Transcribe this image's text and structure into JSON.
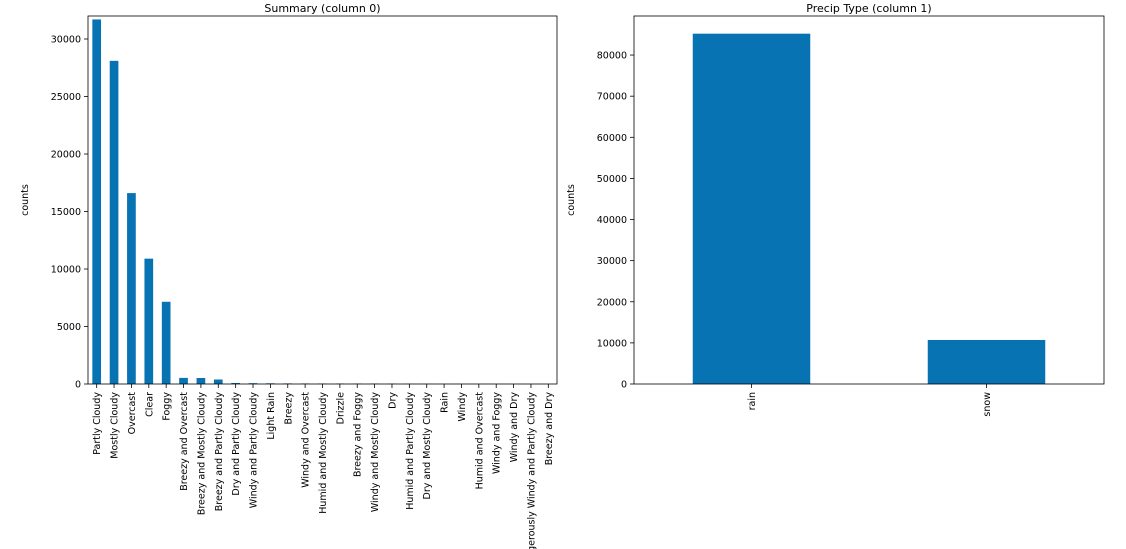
{
  "chart_data": [
    {
      "type": "bar",
      "title": "Summary (column 0)",
      "xlabel": "",
      "ylabel": "counts",
      "ylim": [
        0,
        32000
      ],
      "yticks": [
        0,
        5000,
        10000,
        15000,
        20000,
        25000,
        30000
      ],
      "color": "#0773b2",
      "grid": false,
      "categories": [
        "Partly Cloudy",
        "Mostly Cloudy",
        "Overcast",
        "Clear",
        "Foggy",
        "Breezy and Overcast",
        "Breezy and Mostly Cloudy",
        "Breezy and Partly Cloudy",
        "Dry and Partly Cloudy",
        "Windy and Partly Cloudy",
        "Light Rain",
        "Breezy",
        "Windy and Overcast",
        "Humid and Mostly Cloudy",
        "Drizzle",
        "Breezy and Foggy",
        "Windy and Mostly Cloudy",
        "Dry",
        "Humid and Partly Cloudy",
        "Dry and Mostly Cloudy",
        "Rain",
        "Windy",
        "Humid and Overcast",
        "Windy and Foggy",
        "Windy and Dry",
        "Dangerously Windy and Partly Cloudy",
        "Breezy and Dry"
      ],
      "values": [
        31700,
        28100,
        16600,
        10900,
        7150,
        530,
        520,
        390,
        90,
        70,
        60,
        50,
        45,
        40,
        40,
        35,
        35,
        30,
        17,
        14,
        10,
        8,
        7,
        7,
        1,
        1,
        1
      ]
    },
    {
      "type": "bar",
      "title": "Precip Type (column 1)",
      "xlabel": "",
      "ylabel": "counts",
      "ylim": [
        0,
        89500
      ],
      "yticks": [
        0,
        10000,
        20000,
        30000,
        40000,
        50000,
        60000,
        70000,
        80000
      ],
      "color": "#0773b2",
      "grid": false,
      "categories": [
        "rain",
        "snow"
      ],
      "values": [
        85200,
        10700
      ]
    }
  ]
}
